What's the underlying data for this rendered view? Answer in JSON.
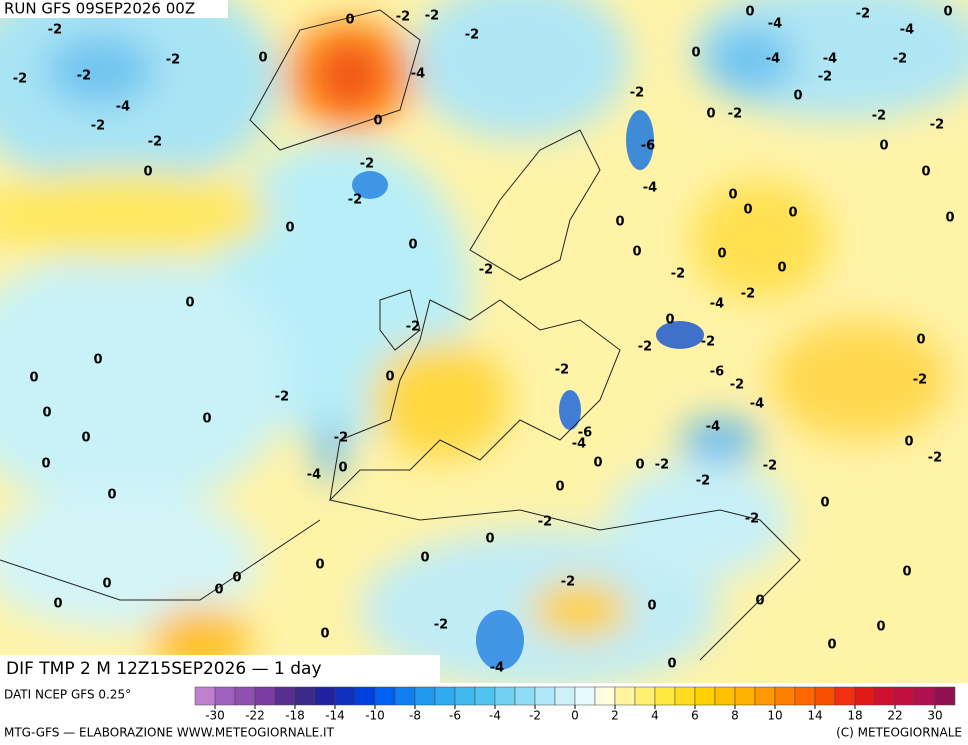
{
  "header": {
    "run": "RUN GFS 09SEP2026 00Z",
    "field": "DIF TMP 2 M 12Z15SEP2026 — 1 day"
  },
  "footer": {
    "source": "DATI NCEP GFS 0.25°",
    "credit": "MTG-GFS — ELABORAZIONE WWW.METEOGIORNALE.IT",
    "copyright": "(C) METEOGIORNALE"
  },
  "colorbar": {
    "colors": [
      "#c080d0",
      "#a060c0",
      "#9050b0",
      "#7a3ca0",
      "#5a2e90",
      "#3a2a8a",
      "#2020a0",
      "#1030c0",
      "#0040e0",
      "#0060f0",
      "#1080f0",
      "#2098f0",
      "#30aaf0",
      "#40b8f0",
      "#50c4f0",
      "#70d0f0",
      "#90dcf4",
      "#b0e8f8",
      "#cdf2fa",
      "#e8fafc",
      "#fffde0",
      "#fff5a0",
      "#fff070",
      "#ffe840",
      "#ffdc20",
      "#ffd000",
      "#ffc000",
      "#ffb000",
      "#ff9800",
      "#ff8000",
      "#ff6800",
      "#f85000",
      "#f03010",
      "#e01818",
      "#d01030",
      "#c01040",
      "#b01050",
      "#901050"
    ],
    "ticks": [
      -30,
      -22,
      -18,
      -14,
      -10,
      -8,
      -6,
      -4,
      -2,
      0,
      2,
      4,
      6,
      8,
      10,
      14,
      18,
      22,
      30
    ]
  },
  "map": {
    "contour_labels": [
      0,
      -2,
      -2,
      -2,
      0,
      -4,
      0,
      -2,
      -2,
      -2,
      -2,
      -4,
      -2,
      -2,
      0,
      -2,
      -2,
      0,
      0,
      -2,
      0,
      -2,
      0,
      0,
      -2,
      0,
      0,
      0,
      -2,
      0,
      -4,
      0,
      0,
      0,
      -2,
      -6,
      -4,
      0,
      0,
      -2,
      -2,
      0,
      -2,
      0,
      0,
      0,
      0,
      0,
      0,
      0,
      0,
      -2,
      -2,
      -4,
      0,
      0,
      0,
      0,
      -2,
      -4,
      0,
      -2,
      -2,
      -6,
      -2,
      -4,
      -4,
      -2,
      -2,
      0,
      -2,
      -6,
      -4,
      0,
      0,
      -2,
      0,
      0,
      0,
      0,
      0,
      0,
      -2,
      -4,
      -4,
      -2,
      -2,
      -2,
      -2,
      -2,
      0,
      0,
      0,
      0,
      -2,
      0,
      -2,
      0,
      0,
      0,
      0,
      0,
      -4,
      -4,
      0,
      0
    ]
  }
}
